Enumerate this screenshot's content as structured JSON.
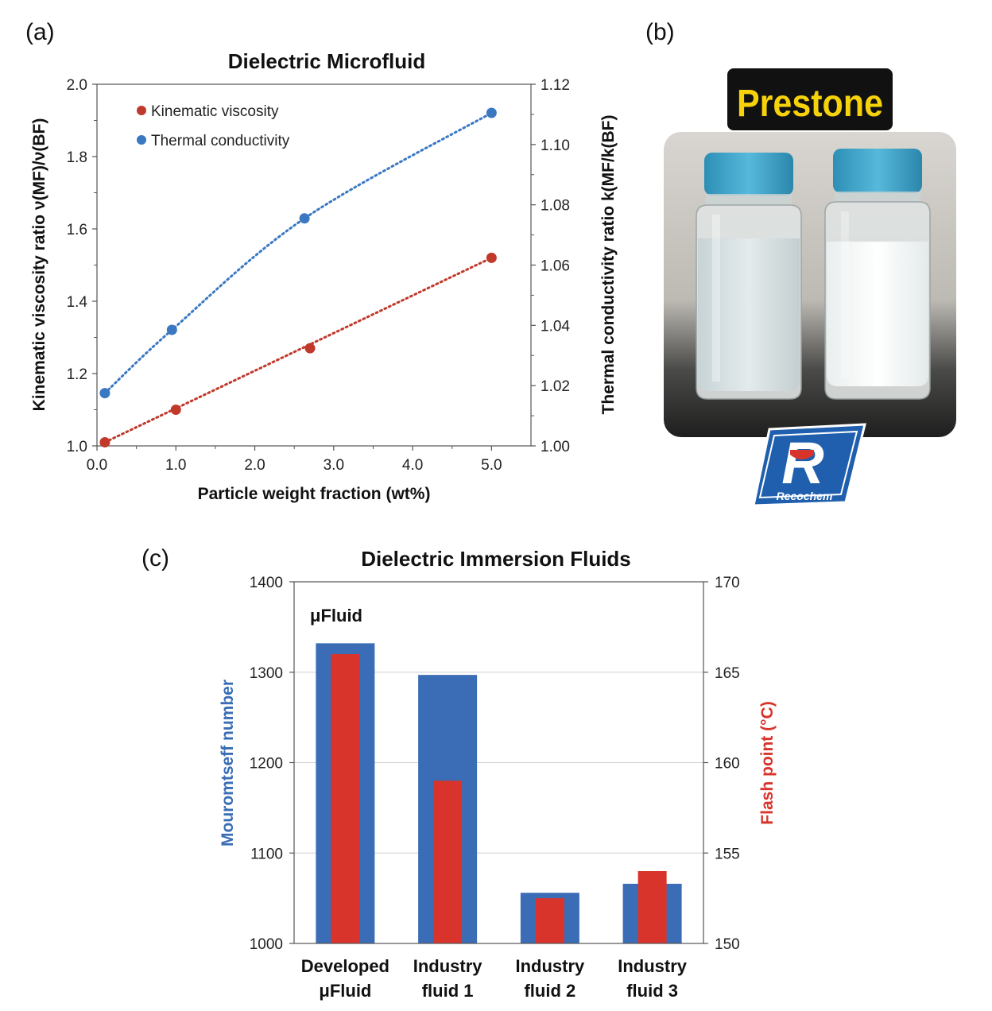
{
  "panels": {
    "a": "(a)",
    "b": "(b)",
    "c": "(c)"
  },
  "chart_data": [
    {
      "type": "scatter",
      "title": "Dielectric Microfluid",
      "xlabel": "Particle weight fraction (wt%)",
      "ylabel": "Kinematic viscosity ratio ν(MF)/ν(BF)",
      "y2label": "Thermal conductivity ratio k(MF/k(BF)",
      "xlim": [
        0,
        5.5
      ],
      "ylim": [
        1.0,
        2.0
      ],
      "y2lim": [
        1.0,
        1.12
      ],
      "xticks": [
        "0.0",
        "1.0",
        "2.0",
        "3.0",
        "4.0",
        "5.0"
      ],
      "yticks": [
        "1.0",
        "1.2",
        "1.4",
        "1.6",
        "1.8",
        "2.0"
      ],
      "y2ticks": [
        "1.00",
        "1.02",
        "1.04",
        "1.06",
        "1.08",
        "1.10",
        "1.12"
      ],
      "legend_position": "top-left",
      "series": [
        {
          "name": "Kinematic viscosity",
          "axis": "left",
          "color": "#c0392b",
          "x": [
            0.1,
            1.0,
            2.7,
            5.0
          ],
          "y": [
            1.01,
            1.1,
            1.27,
            1.52
          ]
        },
        {
          "name": "Thermal conductivity",
          "axis": "right",
          "color": "#3a78c2",
          "x": [
            0.1,
            0.95,
            2.63,
            5.0
          ],
          "y": [
            1.0175,
            1.0385,
            1.0755,
            1.1105
          ]
        }
      ]
    },
    {
      "type": "bar",
      "title": "Dielectric Immersion Fluids",
      "ylabel": "Mouromtseff number",
      "y2label": "Flash point (°C)",
      "ylim": [
        1000,
        1400
      ],
      "y2lim": [
        150,
        170
      ],
      "yticks": [
        "1000",
        "1100",
        "1200",
        "1300",
        "1400"
      ],
      "y2ticks": [
        "150",
        "155",
        "160",
        "165",
        "170"
      ],
      "annotation": "μFluid",
      "categories": [
        [
          "Developed",
          "μFluid"
        ],
        [
          "Industry",
          "fluid 1"
        ],
        [
          "Industry",
          "fluid 2"
        ],
        [
          "Industry",
          "fluid 3"
        ]
      ],
      "series": [
        {
          "name": "Mouromtseff number",
          "axis": "left",
          "color": "#3a6db5",
          "values": [
            1332,
            1297,
            1056,
            1066
          ]
        },
        {
          "name": "Flash point (°C)",
          "axis": "right",
          "color": "#d9342b",
          "values": [
            166,
            159,
            152.5,
            154
          ]
        }
      ]
    }
  ],
  "photo": {
    "brand_top": "Prestone",
    "brand_bottom": "Recochem",
    "brand_bottom_mark": "R",
    "colors": {
      "brand_top_bg": "#111111",
      "brand_top_text": "#f5d20a",
      "cap": "#3aa3c8",
      "logo_blue": "#1f5fae",
      "logo_red": "#d9342b"
    }
  }
}
